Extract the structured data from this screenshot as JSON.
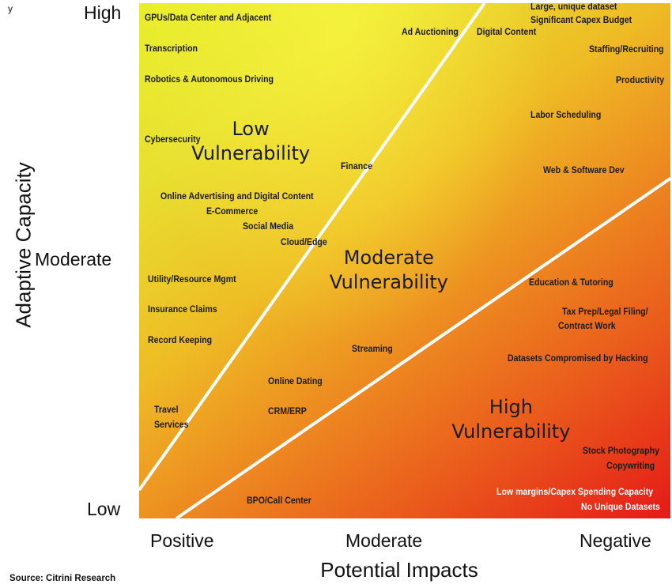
{
  "corner_label": "y",
  "chart_data": {
    "type": "scatter",
    "title": "",
    "xlabel": "Potential Impacts",
    "ylabel": "Adaptive Capacity",
    "x_ticks": [
      "Positive",
      "Moderate",
      "Negative"
    ],
    "y_ticks": [
      "High",
      "Moderate",
      "Low"
    ],
    "xlim": [
      0,
      100
    ],
    "ylim": [
      0,
      100
    ],
    "zones": [
      {
        "label_line1": "Low",
        "label_line2": "Vulnerability",
        "x": 21,
        "y": 73
      },
      {
        "label_line1": "Moderate",
        "label_line2": "Vulnerability",
        "x": 47,
        "y": 48
      },
      {
        "label_line1": "High",
        "label_line2": "Vulnerability",
        "x": 70,
        "y": 19
      }
    ],
    "boundaries": [
      {
        "x": [
          0,
          65
        ],
        "y": [
          5.5,
          100
        ]
      },
      {
        "x": [
          7,
          100
        ],
        "y": [
          0,
          66
        ]
      }
    ],
    "points": [
      {
        "label": "GPUs/Data Center and Adjacent",
        "x": 1,
        "y": 97
      },
      {
        "label": "Transcription",
        "x": 1,
        "y": 91
      },
      {
        "label": "Robotics & Autonomous Driving",
        "x": 1,
        "y": 85
      },
      {
        "label": "Cybersecurity",
        "x": 1,
        "y": 73.3
      },
      {
        "label": "Online Advertising and Digital Content",
        "x": 4,
        "y": 62.3
      },
      {
        "label": "E-Commerce",
        "x": 12.6,
        "y": 59.3
      },
      {
        "label": "Social Media",
        "x": 19.5,
        "y": 56.5
      },
      {
        "label": "Cloud/Edge",
        "x": 26.6,
        "y": 53.3
      },
      {
        "label": "Finance",
        "x": 38,
        "y": 68.1
      },
      {
        "label": "Ad Auctioning",
        "x": 49.4,
        "y": 94.1
      },
      {
        "label": "Digital Content",
        "x": 63.6,
        "y": 94.1
      },
      {
        "label": "Large, unique dataset",
        "x": 73.7,
        "y": 99.1
      },
      {
        "label": "Significant Capex Budget",
        "x": 73.7,
        "y": 96.4
      },
      {
        "label": "Staffing/Recruiting",
        "x": 84.7,
        "y": 90.8
      },
      {
        "label": "Productivity",
        "x": 89.7,
        "y": 84.8
      },
      {
        "label": "Labor Scheduling",
        "x": 73.7,
        "y": 78.1
      },
      {
        "label": "Web & Software Dev",
        "x": 76,
        "y": 67.4
      },
      {
        "label": "Utility/Resource Mgmt",
        "x": 1.6,
        "y": 46.2
      },
      {
        "label": "Insurance Claims",
        "x": 1.6,
        "y": 40.3
      },
      {
        "label": "Record Keeping",
        "x": 1.6,
        "y": 34.4
      },
      {
        "label": "Education & Tutoring",
        "x": 73.4,
        "y": 45.6
      },
      {
        "label": "Tax Prep/Legal Filing/",
        "x": 79.6,
        "y": 39.9
      },
      {
        "label": "Contract Work",
        "x": 78.9,
        "y": 37.1
      },
      {
        "label": "Streaming",
        "x": 40,
        "y": 32.7
      },
      {
        "label": "Datasets Compromised by Hacking",
        "x": 69.4,
        "y": 30.8
      },
      {
        "label": "Online Dating",
        "x": 24.2,
        "y": 26.4
      },
      {
        "label": "CRM/ERP",
        "x": 24.2,
        "y": 20.6
      },
      {
        "label": "Travel",
        "x": 2.9,
        "y": 20.9
      },
      {
        "label": "Services",
        "x": 2.9,
        "y": 18.0
      },
      {
        "label": "Stock Photography",
        "x": 83.5,
        "y": 12.9
      },
      {
        "label": "Copywriting",
        "x": 88,
        "y": 10.0
      },
      {
        "label": "BPO/Call Center",
        "x": 20.2,
        "y": 3.2
      },
      {
        "label": "Low margins/Capex Spending Capacity",
        "x": 67.3,
        "y": 4.9,
        "light": true
      },
      {
        "label": "No Unique Datasets",
        "x": 83.2,
        "y": 2.0,
        "light": true
      }
    ]
  },
  "source": "Source: Citrini Research"
}
